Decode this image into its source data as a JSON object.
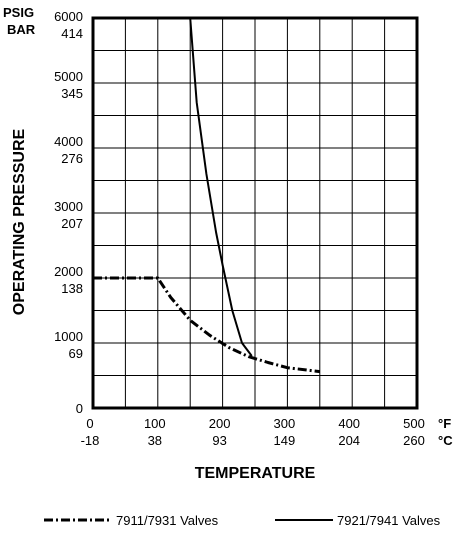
{
  "chart_data": {
    "type": "line",
    "xlabel": "TEMPERATURE",
    "ylabel": "OPERATING PRESSURE",
    "y_units": [
      "PSIG",
      "BAR"
    ],
    "x_units": [
      "°F",
      "°C"
    ],
    "xlim": [
      0,
      500
    ],
    "ylim": [
      0,
      6000
    ],
    "grid": true,
    "legend_position": "bottom",
    "x_ticks": [
      {
        "f": "0",
        "c": "-18"
      },
      {
        "f": "100",
        "c": "38"
      },
      {
        "f": "200",
        "c": "93"
      },
      {
        "f": "300",
        "c": "149"
      },
      {
        "f": "400",
        "c": "204"
      },
      {
        "f": "500",
        "c": "260"
      }
    ],
    "y_ticks": [
      {
        "psig": "0",
        "bar": ""
      },
      {
        "psig": "1000",
        "bar": "69"
      },
      {
        "psig": "2000",
        "bar": "138"
      },
      {
        "psig": "3000",
        "bar": "207"
      },
      {
        "psig": "4000",
        "bar": "276"
      },
      {
        "psig": "5000",
        "bar": "345"
      },
      {
        "psig": "6000",
        "bar": "414"
      }
    ],
    "series": [
      {
        "name": "7911/7931 Valves",
        "style": "dash-dot",
        "x": [
          0,
          100,
          120,
          150,
          180,
          210,
          240,
          270,
          300,
          350
        ],
        "y": [
          2000,
          2000,
          1700,
          1350,
          1120,
          930,
          790,
          700,
          620,
          560
        ]
      },
      {
        "name": "7921/7941 Valves",
        "style": "solid",
        "x": [
          0,
          150,
          160,
          175,
          190,
          200,
          215,
          230,
          245
        ],
        "y": [
          6000,
          6000,
          4700,
          3600,
          2700,
          2200,
          1500,
          1000,
          800
        ]
      }
    ]
  }
}
